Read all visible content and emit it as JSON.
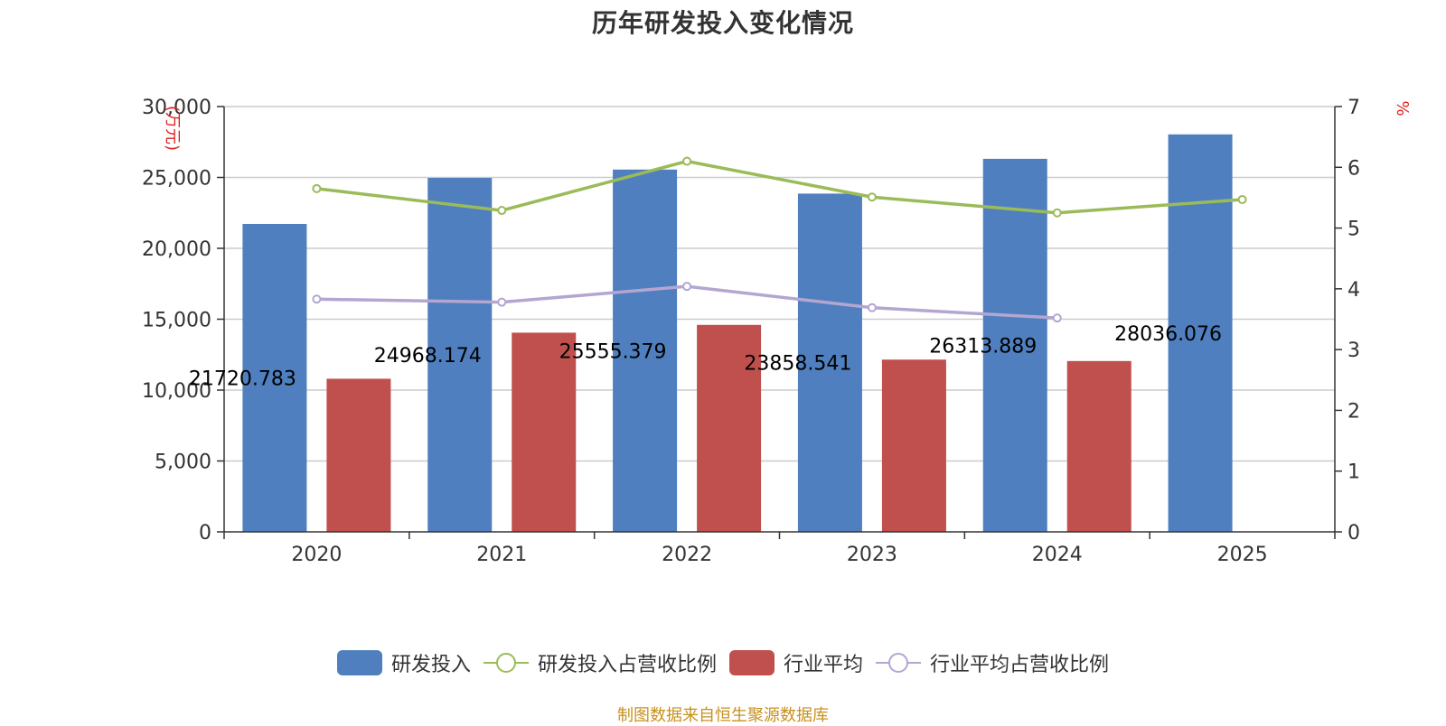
{
  "title": "历年研发投入变化情况",
  "source_note": "制图数据来自恒生聚源数据库",
  "legend": [
    {
      "label": "研发投入",
      "kind": "bar",
      "color": "#4f7fbe"
    },
    {
      "label": "研发投入占营收比例",
      "kind": "line",
      "color": "#9bbb59"
    },
    {
      "label": "行业平均",
      "kind": "bar",
      "color": "#c0504d"
    },
    {
      "label": "行业平均占营收比例",
      "kind": "line",
      "color": "#b3a6d1"
    }
  ],
  "chart_data": {
    "type": "bar",
    "title": "历年研发投入变化情况",
    "categories": [
      "2020",
      "2021",
      "2022",
      "2023",
      "2024",
      "2025"
    ],
    "y_left": {
      "label": "(万元)",
      "ylim": [
        0,
        30000
      ],
      "ticks": [
        "0",
        "5,000",
        "10,000",
        "15,000",
        "20,000",
        "25,000",
        "30,000"
      ],
      "tick_values": [
        0,
        5000,
        10000,
        15000,
        20000,
        25000,
        30000
      ]
    },
    "y_right": {
      "label": "%",
      "ylim": [
        0,
        7
      ],
      "ticks": [
        "0",
        "1",
        "2",
        "3",
        "4",
        "5",
        "6",
        "7"
      ],
      "tick_values": [
        0,
        1,
        2,
        3,
        4,
        5,
        6,
        7
      ]
    },
    "grid": true,
    "legend_position": "bottom",
    "series": [
      {
        "name": "研发投入",
        "type": "bar",
        "axis": "left",
        "color": "#4f7fbe",
        "values": [
          21720.783,
          24968.174,
          25555.379,
          23858.541,
          26313.889,
          28036.076
        ],
        "labels": [
          "21720.783",
          "24968.174",
          "25555.379",
          "23858.541",
          "26313.889",
          "28036.076"
        ]
      },
      {
        "name": "行业平均",
        "type": "bar",
        "axis": "left",
        "color": "#c0504d",
        "values": [
          10800,
          14050,
          14600,
          12150,
          12050,
          null
        ]
      },
      {
        "name": "研发投入占营收比例",
        "type": "line",
        "axis": "right",
        "color": "#9bbb59",
        "values": [
          5.65,
          5.29,
          6.1,
          5.51,
          5.25,
          5.47
        ]
      },
      {
        "name": "行业平均占营收比例",
        "type": "line",
        "axis": "right",
        "color": "#b3a6d1",
        "values": [
          3.83,
          3.78,
          4.04,
          3.69,
          3.52,
          null
        ]
      }
    ]
  }
}
